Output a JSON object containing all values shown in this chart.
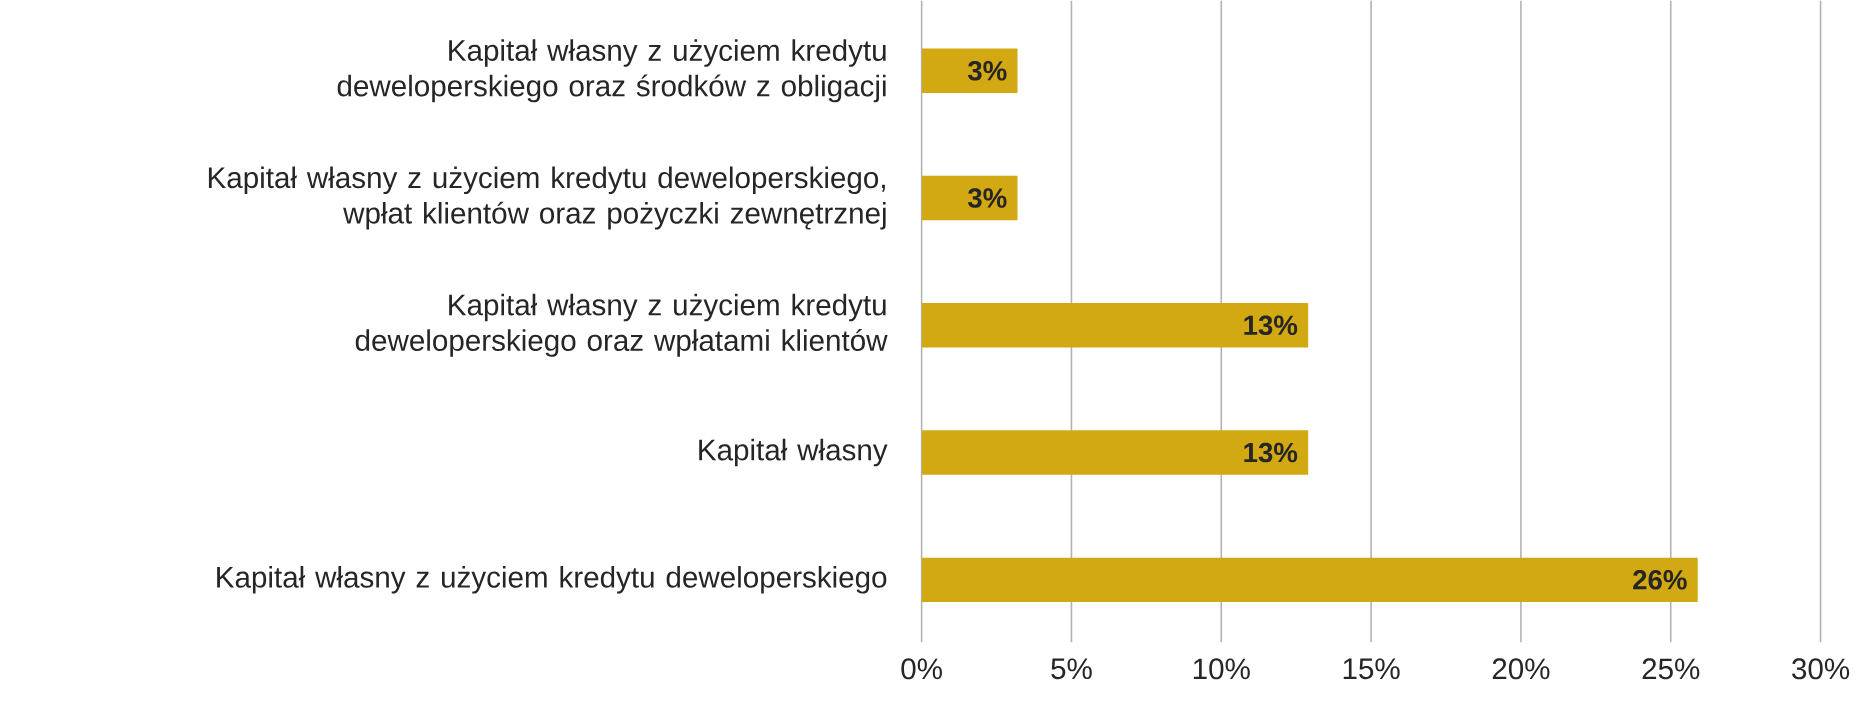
{
  "chart_data": {
    "type": "bar",
    "orientation": "horizontal",
    "categories": [
      "Kapitał własny z użyciem kredytu deweloperskiego oraz środków z obligacji",
      "Kapitał własny z użyciem kredytu deweloperskiego, wpłat klientów oraz pożyczki zewnętrznej",
      "Kapitał własny z użyciem kredytu deweloperskiego oraz wpłatami klientów",
      "Kapitał własny",
      "Kapitał własny z użyciem kredytu deweloperskiego"
    ],
    "values": [
      3.2,
      3.2,
      12.9,
      12.9,
      25.9
    ],
    "value_labels": [
      "3%",
      "3%",
      "13%",
      "13%",
      "26%"
    ],
    "color": "#d2a813",
    "xlim": [
      0,
      30
    ],
    "xticks": [
      {
        "value": 0,
        "label": "0%"
      },
      {
        "value": 5,
        "label": "5%"
      },
      {
        "value": 10,
        "label": "10%"
      },
      {
        "value": 15,
        "label": "15%"
      },
      {
        "value": 20,
        "label": "20%"
      },
      {
        "value": 25,
        "label": "25%"
      },
      {
        "value": 30,
        "label": "30%"
      }
    ],
    "grid": "x"
  }
}
